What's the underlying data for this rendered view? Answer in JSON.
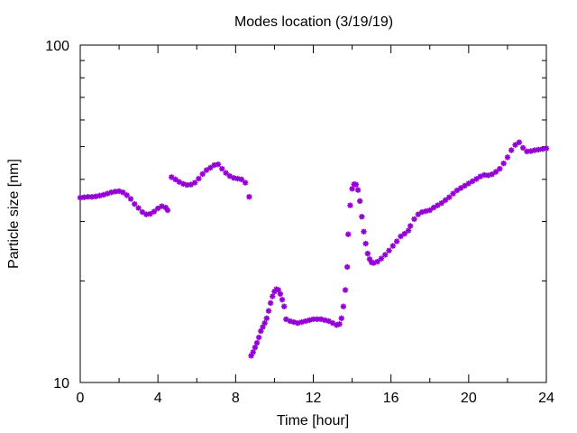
{
  "chart_data": {
    "type": "scatter",
    "title": "Modes location (3/19/19)",
    "xlabel": "Time [hour]",
    "ylabel": "Particle size [nm]",
    "xlim": [
      0,
      24
    ],
    "ylim": [
      10,
      100
    ],
    "yscale": "log",
    "x_ticks": [
      "0",
      "4",
      "8",
      "12",
      "16",
      "20",
      "24"
    ],
    "y_ticks": [
      "10",
      "100"
    ],
    "grid": false,
    "marker": "asterisk",
    "colors": {
      "series": "#9400d3",
      "axis": "#000000"
    },
    "series": [
      {
        "values": [
          [
            0.0,
            35.3
          ],
          [
            0.2,
            35.4
          ],
          [
            0.4,
            35.5
          ],
          [
            0.6,
            35.5
          ],
          [
            0.8,
            35.6
          ],
          [
            1.0,
            35.8
          ],
          [
            1.2,
            36.0
          ],
          [
            1.4,
            36.3
          ],
          [
            1.6,
            36.6
          ],
          [
            1.8,
            36.8
          ],
          [
            2.0,
            36.9
          ],
          [
            2.2,
            36.6
          ],
          [
            2.4,
            35.9
          ],
          [
            2.6,
            35.0
          ],
          [
            2.8,
            33.8
          ],
          [
            3.0,
            32.9
          ],
          [
            3.2,
            32.0
          ],
          [
            3.4,
            31.5
          ],
          [
            3.6,
            31.6
          ],
          [
            3.8,
            32.1
          ],
          [
            4.0,
            32.8
          ],
          [
            4.2,
            33.3
          ],
          [
            4.4,
            33.0
          ],
          [
            4.5,
            32.4
          ],
          [
            4.7,
            40.6
          ],
          [
            4.9,
            40.0
          ],
          [
            5.1,
            39.3
          ],
          [
            5.3,
            38.8
          ],
          [
            5.5,
            38.5
          ],
          [
            5.7,
            38.6
          ],
          [
            5.9,
            39.1
          ],
          [
            6.1,
            40.2
          ],
          [
            6.3,
            41.5
          ],
          [
            6.5,
            42.6
          ],
          [
            6.7,
            43.3
          ],
          [
            6.9,
            44.1
          ],
          [
            7.1,
            44.3
          ],
          [
            7.3,
            43.0
          ],
          [
            7.5,
            41.8
          ],
          [
            7.7,
            40.9
          ],
          [
            7.9,
            40.4
          ],
          [
            8.1,
            40.2
          ],
          [
            8.3,
            40.0
          ],
          [
            8.5,
            39.1
          ],
          [
            8.7,
            35.5
          ],
          [
            8.8,
            12.0
          ],
          [
            8.9,
            12.3
          ],
          [
            9.0,
            12.7
          ],
          [
            9.1,
            13.1
          ],
          [
            9.2,
            13.6
          ],
          [
            9.3,
            14.2
          ],
          [
            9.4,
            14.6
          ],
          [
            9.5,
            15.0
          ],
          [
            9.6,
            15.5
          ],
          [
            9.7,
            16.3
          ],
          [
            9.8,
            17.2
          ],
          [
            9.9,
            18.0
          ],
          [
            10.0,
            18.6
          ],
          [
            10.1,
            18.9
          ],
          [
            10.2,
            18.8
          ],
          [
            10.3,
            18.3
          ],
          [
            10.4,
            17.6
          ],
          [
            10.5,
            16.8
          ],
          [
            10.6,
            15.4
          ],
          [
            10.8,
            15.2
          ],
          [
            11.0,
            15.1
          ],
          [
            11.2,
            15.0
          ],
          [
            11.4,
            15.1
          ],
          [
            11.6,
            15.2
          ],
          [
            11.8,
            15.3
          ],
          [
            12.0,
            15.4
          ],
          [
            12.2,
            15.4
          ],
          [
            12.4,
            15.4
          ],
          [
            12.6,
            15.3
          ],
          [
            12.8,
            15.2
          ],
          [
            13.0,
            15.0
          ],
          [
            13.2,
            14.8
          ],
          [
            13.35,
            14.9
          ],
          [
            13.45,
            15.5
          ],
          [
            13.55,
            16.8
          ],
          [
            13.65,
            18.8
          ],
          [
            13.75,
            22.0
          ],
          [
            13.8,
            27.5
          ],
          [
            13.9,
            33.5
          ],
          [
            14.0,
            37.5
          ],
          [
            14.1,
            38.7
          ],
          [
            14.2,
            38.6
          ],
          [
            14.3,
            37.2
          ],
          [
            14.4,
            34.5
          ],
          [
            14.5,
            31.0
          ],
          [
            14.6,
            28.0
          ],
          [
            14.7,
            25.8
          ],
          [
            14.8,
            24.1
          ],
          [
            14.9,
            23.2
          ],
          [
            15.0,
            22.7
          ],
          [
            15.1,
            22.6
          ],
          [
            15.3,
            22.8
          ],
          [
            15.5,
            23.3
          ],
          [
            15.7,
            23.9
          ],
          [
            15.9,
            24.6
          ],
          [
            16.1,
            25.4
          ],
          [
            16.3,
            26.2
          ],
          [
            16.5,
            27.1
          ],
          [
            16.7,
            27.6
          ],
          [
            16.9,
            28.2
          ],
          [
            17.0,
            29.1
          ],
          [
            17.2,
            30.5
          ],
          [
            17.4,
            31.5
          ],
          [
            17.6,
            32.0
          ],
          [
            17.8,
            32.2
          ],
          [
            18.0,
            32.4
          ],
          [
            18.2,
            33.0
          ],
          [
            18.4,
            33.5
          ],
          [
            18.6,
            34.0
          ],
          [
            18.8,
            34.7
          ],
          [
            19.0,
            35.4
          ],
          [
            19.2,
            36.3
          ],
          [
            19.4,
            37.1
          ],
          [
            19.6,
            37.7
          ],
          [
            19.8,
            38.3
          ],
          [
            20.0,
            38.9
          ],
          [
            20.2,
            39.5
          ],
          [
            20.4,
            40.1
          ],
          [
            20.6,
            40.8
          ],
          [
            20.8,
            41.2
          ],
          [
            21.0,
            41.1
          ],
          [
            21.2,
            41.4
          ],
          [
            21.4,
            42.1
          ],
          [
            21.6,
            43.0
          ],
          [
            21.8,
            44.6
          ],
          [
            22.0,
            46.5
          ],
          [
            22.2,
            48.8
          ],
          [
            22.4,
            50.6
          ],
          [
            22.6,
            51.5
          ],
          [
            22.8,
            49.6
          ],
          [
            23.0,
            48.4
          ],
          [
            23.2,
            48.5
          ],
          [
            23.4,
            48.8
          ],
          [
            23.6,
            49.0
          ],
          [
            23.8,
            49.2
          ],
          [
            24.0,
            49.4
          ]
        ]
      }
    ]
  }
}
